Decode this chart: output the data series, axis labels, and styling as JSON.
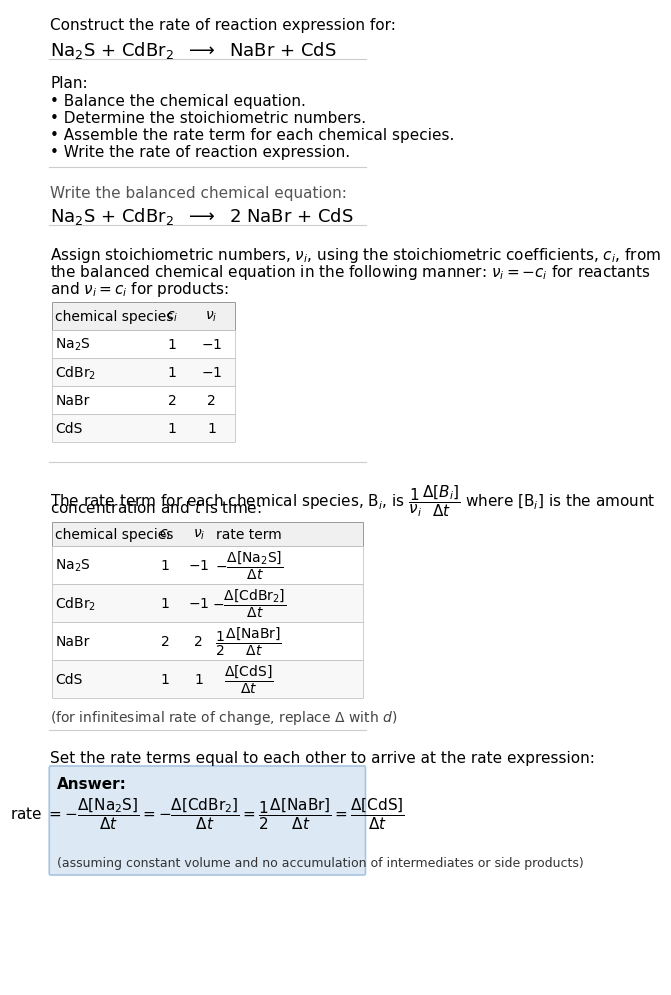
{
  "bg_color": "#ffffff",
  "text_color": "#000000",
  "section_line_color": "#cccccc",
  "answer_box_color": "#dce9f5",
  "answer_box_edge": "#a8c4e0",
  "title_text": "Construct the rate of reaction expression for:",
  "reaction_unbalanced": "Na$_2$S + CdBr$_2$  $\\longrightarrow$  NaBr + CdS",
  "plan_header": "Plan:",
  "plan_items": [
    "• Balance the chemical equation.",
    "• Determine the stoichiometric numbers.",
    "• Assemble the rate term for each chemical species.",
    "• Write the rate of reaction expression."
  ],
  "balanced_header": "Write the balanced chemical equation:",
  "reaction_balanced": "Na$_2$S + CdBr$_2$  $\\longrightarrow$  2 NaBr + CdS",
  "stoich_intro": "Assign stoichiometric numbers, $\\nu_i$, using the stoichiometric coefficients, $c_i$, from\nthe balanced chemical equation in the following manner: $\\nu_i = -c_i$ for reactants\nand $\\nu_i = c_i$ for products:",
  "table1_headers": [
    "chemical species",
    "$c_i$",
    "$\\nu_i$"
  ],
  "table1_rows": [
    [
      "Na$_2$S",
      "1",
      "$-1$"
    ],
    [
      "CdBr$_2$",
      "1",
      "$-1$"
    ],
    [
      "NaBr",
      "2",
      "2"
    ],
    [
      "CdS",
      "1",
      "1"
    ]
  ],
  "rate_intro": "The rate term for each chemical species, B$_i$, is $\\dfrac{1}{\\nu_i}\\dfrac{\\Delta[B_i]}{\\Delta t}$ where [B$_i$] is the amount\nconcentration and $t$ is time:",
  "table2_headers": [
    "chemical species",
    "$c_i$",
    "$\\nu_i$",
    "rate term"
  ],
  "table2_rows": [
    [
      "Na$_2$S",
      "1",
      "$-1$",
      "$-\\dfrac{\\Delta[Na_2S]}{\\Delta t}$"
    ],
    [
      "CdBr$_2$",
      "1",
      "$-1$",
      "$-\\dfrac{\\Delta[CdBr_2]}{\\Delta t}$"
    ],
    [
      "NaBr",
      "2",
      "2",
      "$\\dfrac{1}{2}\\dfrac{\\Delta[NaBr]}{\\Delta t}$"
    ],
    [
      "CdS",
      "1",
      "1",
      "$\\dfrac{\\Delta[CdS]}{\\Delta t}$"
    ]
  ],
  "infinitesimal_note": "(for infinitesimal rate of change, replace $\\Delta$ with $d$)",
  "set_equal_text": "Set the rate terms equal to each other to arrive at the rate expression:",
  "answer_label": "Answer:",
  "answer_note": "(assuming constant volume and no accumulation of intermediates or side products)"
}
